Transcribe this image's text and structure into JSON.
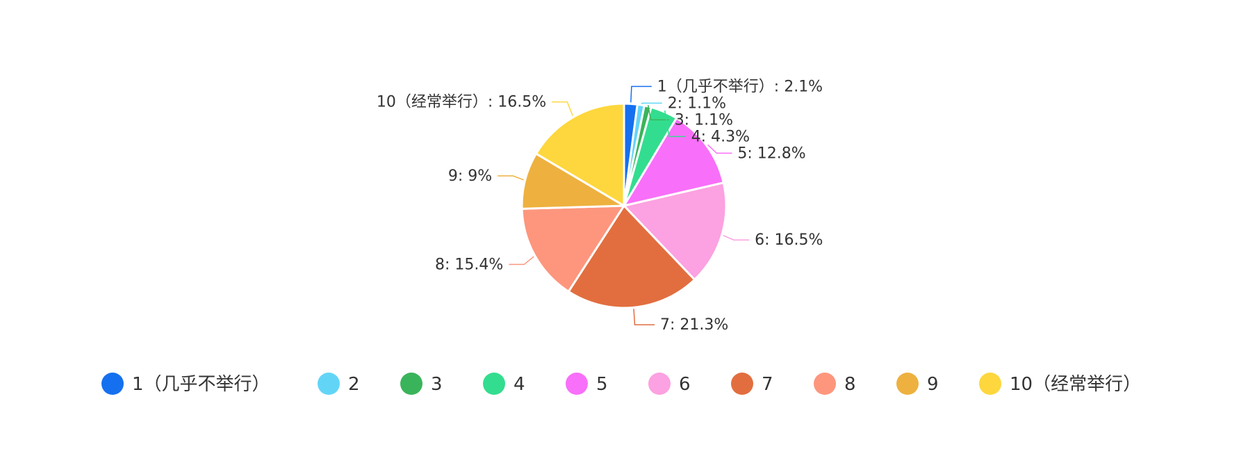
{
  "chart_data": {
    "type": "pie",
    "legend_position": "bottom",
    "slices": [
      {
        "name": "1（几乎不举行）",
        "label": "1（几乎不举行）: 2.1%",
        "value": 2.1,
        "color": "#1570ef"
      },
      {
        "name": "2",
        "label": "2: 1.1%",
        "value": 1.1,
        "color": "#62d5f7"
      },
      {
        "name": "3",
        "label": "3: 1.1%",
        "value": 1.1,
        "color": "#3ab45a"
      },
      {
        "name": "4",
        "label": "4: 4.3%",
        "value": 4.3,
        "color": "#33dd8f"
      },
      {
        "name": "5",
        "label": "5: 12.8%",
        "value": 12.8,
        "color": "#f86ff9"
      },
      {
        "name": "6",
        "label": "6: 16.5%",
        "value": 16.5,
        "color": "#fca1e1"
      },
      {
        "name": "7",
        "label": "7: 21.3%",
        "value": 21.3,
        "color": "#e26e3f"
      },
      {
        "name": "8",
        "label": "8: 15.4%",
        "value": 15.4,
        "color": "#fd967d"
      },
      {
        "name": "9",
        "label": "9: 9%",
        "value": 9,
        "color": "#eeb13f"
      },
      {
        "name": "10（经常举行）",
        "label": "10（经常举行）: 16.5%",
        "value": 16.5,
        "color": "#fdd73d"
      }
    ]
  }
}
